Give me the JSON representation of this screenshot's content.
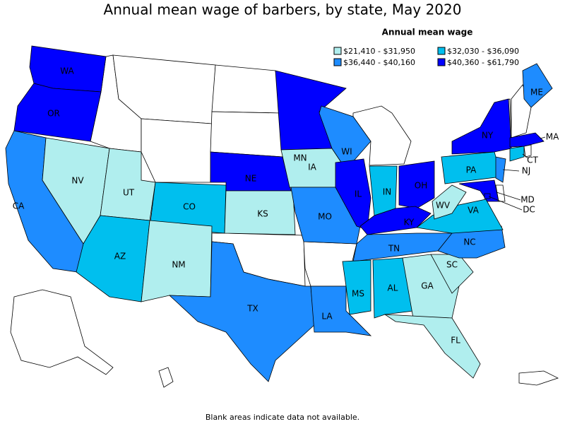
{
  "title": "Annual mean wage of barbers, by state, May 2020",
  "legend": {
    "title": "Annual mean wage",
    "classes": [
      {
        "label": "$21,410 - $31,950",
        "color": "#b0eeee"
      },
      {
        "label": "$32,030 - $36,090",
        "color": "#00bfee"
      },
      {
        "label": "$36,440 - $40,160",
        "color": "#1e8cff"
      },
      {
        "label": "$40,360 - $61,790",
        "color": "#0000ff"
      }
    ]
  },
  "states": [
    {
      "label": "WA",
      "color": "#0000ff"
    },
    {
      "label": "OR",
      "color": "#0000ff"
    },
    {
      "label": "CA",
      "color": "#1e8cff"
    },
    {
      "label": "NV",
      "color": "#b0eeee"
    },
    {
      "label": "UT",
      "color": "#b0eeee"
    },
    {
      "label": "AZ",
      "color": "#00bfee"
    },
    {
      "label": "CO",
      "color": "#00bfee"
    },
    {
      "label": "NM",
      "color": "#b0eeee"
    },
    {
      "label": "TX",
      "color": "#1e8cff"
    },
    {
      "label": "NE",
      "color": "#0000ff"
    },
    {
      "label": "KS",
      "color": "#b0eeee"
    },
    {
      "label": "MN",
      "color": "#0000ff"
    },
    {
      "label": "IA",
      "color": "#b0eeee"
    },
    {
      "label": "MO",
      "color": "#1e8cff"
    },
    {
      "label": "LA",
      "color": "#1e8cff"
    },
    {
      "label": "WI",
      "color": "#1e8cff"
    },
    {
      "label": "IL",
      "color": "#0000ff"
    },
    {
      "label": "IN",
      "color": "#00bfee"
    },
    {
      "label": "OH",
      "color": "#0000ff"
    },
    {
      "label": "KY",
      "color": "#0000ff"
    },
    {
      "label": "TN",
      "color": "#1e8cff"
    },
    {
      "label": "MS",
      "color": "#00bfee"
    },
    {
      "label": "AL",
      "color": "#00bfee"
    },
    {
      "label": "GA",
      "color": "#b0eeee"
    },
    {
      "label": "FL",
      "color": "#b0eeee"
    },
    {
      "label": "SC",
      "color": "#b0eeee"
    },
    {
      "label": "NC",
      "color": "#1e8cff"
    },
    {
      "label": "VA",
      "color": "#00bfee"
    },
    {
      "label": "WV",
      "color": "#b0eeee"
    },
    {
      "label": "PA",
      "color": "#00bfee"
    },
    {
      "label": "NY",
      "color": "#0000ff"
    },
    {
      "label": "NJ",
      "color": "#1e8cff"
    },
    {
      "label": "MD",
      "color": "#0000ff"
    },
    {
      "label": "DC",
      "color": "#0000ff"
    },
    {
      "label": "CT",
      "color": "#00bfee"
    },
    {
      "label": "MA",
      "color": "#0000ff"
    },
    {
      "label": "ME",
      "color": "#1e8cff"
    }
  ],
  "note": "Blank areas indicate data not available."
}
